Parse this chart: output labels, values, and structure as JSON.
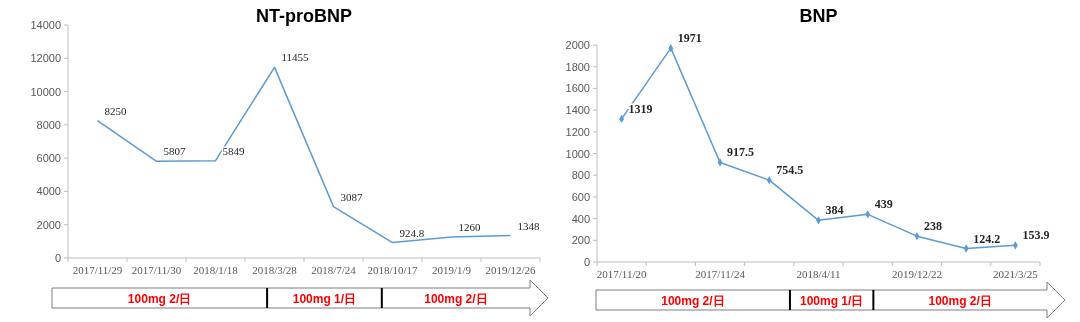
{
  "chart_data": [
    {
      "type": "line",
      "title": "NT-proBNP",
      "categories": [
        "2017/11/29",
        "2017/11/30",
        "2018/1/18",
        "2018/3/28",
        "2018/7/24",
        "2018/10/17",
        "2019/1/9",
        "2019/12/26"
      ],
      "series": [
        {
          "color": "#5b9bd5",
          "values": [
            8250,
            5807,
            5849,
            11455,
            3087,
            924.8,
            1260,
            1348
          ]
        }
      ],
      "ylim": [
        0,
        14000
      ],
      "yticks": [
        0,
        2000,
        4000,
        6000,
        8000,
        10000,
        12000,
        14000
      ],
      "data_labels": true,
      "marker": "none",
      "grid": false,
      "annotations": [
        "100mg 2/日",
        "100mg 1/日",
        "100mg 2/日"
      ]
    },
    {
      "type": "line",
      "title": "BNP",
      "categories": [
        "2017/11/20",
        null,
        "2017/11/24",
        null,
        "2018/4/11",
        null,
        "2019/12/22",
        null,
        "2021/3/25"
      ],
      "series": [
        {
          "color": "#5b9bd5",
          "values": [
            1319,
            1971,
            917.5,
            754.5,
            384,
            439,
            238,
            124.2,
            153.9
          ]
        }
      ],
      "ylim": [
        0,
        2000
      ],
      "yticks": [
        0,
        200,
        400,
        600,
        800,
        1000,
        1200,
        1400,
        1600,
        1800,
        2000
      ],
      "data_labels": true,
      "marker": "diamond",
      "grid": false,
      "annotations": [
        "100mg 2/日",
        "100mg 1/日",
        "100mg 2/日"
      ]
    }
  ]
}
